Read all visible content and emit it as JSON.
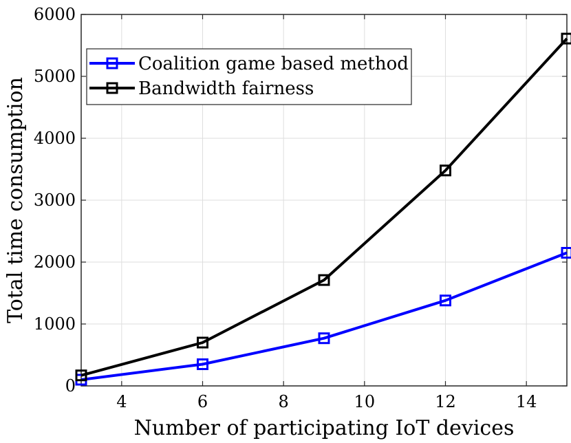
{
  "chart_data": {
    "type": "line",
    "title": "",
    "xlabel": "Number of participating IoT devices",
    "ylabel": "Total time consumption",
    "xlim": [
      3,
      15
    ],
    "ylim": [
      0,
      6000
    ],
    "xticks": [
      4,
      6,
      8,
      10,
      12,
      14
    ],
    "yticks": [
      0,
      1000,
      2000,
      3000,
      4000,
      5000,
      6000
    ],
    "xtick_labels": [
      "4",
      "6",
      "8",
      "10",
      "12",
      "14"
    ],
    "ytick_labels": [
      "0",
      "1000",
      "2000",
      "3000",
      "4000",
      "5000",
      "6000"
    ],
    "grid": true,
    "legend_position": "top-left",
    "x": [
      3,
      6,
      9,
      12,
      15
    ],
    "series": [
      {
        "name": "Coalition game based method",
        "color": "#0000ff",
        "marker": "square",
        "values": [
          100,
          350,
          770,
          1380,
          2150
        ]
      },
      {
        "name": "Bandwidth fairness",
        "color": "#000000",
        "marker": "square",
        "values": [
          170,
          700,
          1710,
          3480,
          5610
        ]
      }
    ]
  }
}
